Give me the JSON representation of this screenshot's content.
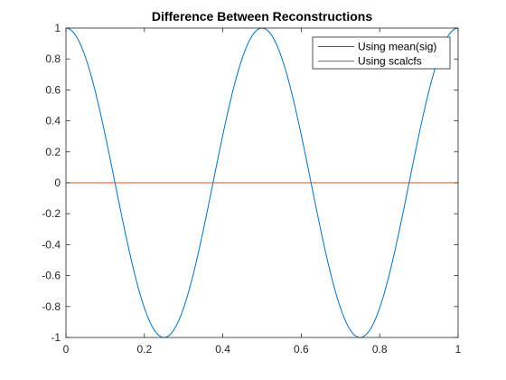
{
  "chart_data": {
    "type": "line",
    "title": "Difference Between Reconstructions",
    "xlabel": "",
    "ylabel": "",
    "xlim": [
      0,
      1
    ],
    "ylim": [
      -1,
      1
    ],
    "x_ticks": [
      0,
      0.2,
      0.4,
      0.6,
      0.8,
      1
    ],
    "x_tick_labels": [
      "0",
      "0.2",
      "0.4",
      "0.6",
      "0.8",
      "1"
    ],
    "y_ticks": [
      -1,
      -0.8,
      -0.6,
      -0.4,
      -0.2,
      0,
      0.2,
      0.4,
      0.6,
      0.8,
      1
    ],
    "y_tick_labels": [
      "-1",
      "-0.8",
      "-0.6",
      "-0.4",
      "-0.2",
      "0",
      "0.2",
      "0.4",
      "0.6",
      "0.8",
      "1"
    ],
    "grid": false,
    "legend_position": "top-right",
    "series": [
      {
        "name": "Using mean(sig)",
        "color": "#0072BD",
        "x": [
          0,
          0.05,
          0.1,
          0.15,
          0.2,
          0.25,
          0.3,
          0.35,
          0.4,
          0.45,
          0.5,
          0.55,
          0.6,
          0.65,
          0.7,
          0.75,
          0.8,
          0.85,
          0.9,
          0.95,
          1
        ],
        "y": [
          1,
          0.809,
          0.309,
          -0.309,
          -0.809,
          -1,
          -0.809,
          -0.309,
          0.309,
          0.809,
          1,
          0.809,
          0.309,
          -0.309,
          -0.809,
          -1,
          -0.809,
          -0.309,
          0.309,
          0.809,
          1
        ]
      },
      {
        "name": "Using scalcfs",
        "color": "#D95319",
        "x": [
          0,
          1
        ],
        "y": [
          0,
          0
        ]
      }
    ]
  }
}
